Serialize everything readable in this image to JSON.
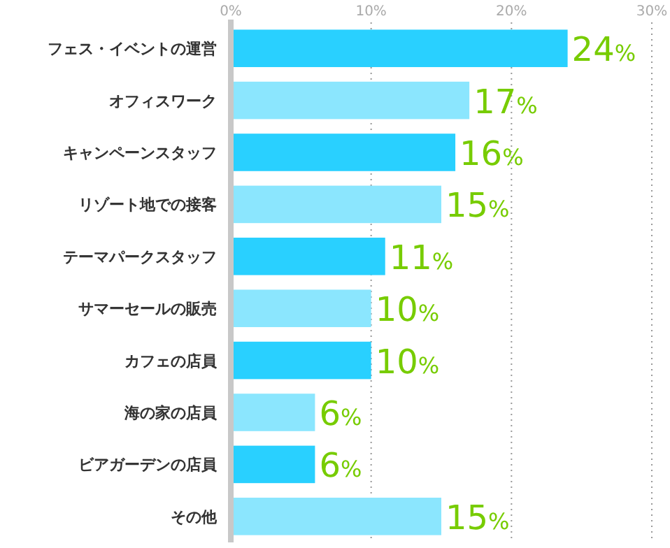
{
  "chart_data": {
    "type": "bar",
    "orientation": "horizontal",
    "categories": [
      "フェス・イベントの運営",
      "オフィスワーク",
      "キャンペーンスタッフ",
      "リゾート地での接客",
      "テーマパークスタッフ",
      "サマーセールの販売",
      "カフェの店員",
      "海の家の店員",
      "ビアガーデンの店員",
      "その他"
    ],
    "values": [
      24,
      17,
      16,
      15,
      11,
      10,
      10,
      6,
      6,
      15
    ],
    "colors": [
      "#29d0ff",
      "#8be6fe",
      "#29d0ff",
      "#8be6fe",
      "#29d0ff",
      "#8be6fe",
      "#29d0ff",
      "#8be6fe",
      "#29d0ff",
      "#8be6fe"
    ],
    "value_labels": [
      "24%",
      "17%",
      "16%",
      "15%",
      "11%",
      "10%",
      "10%",
      "6%",
      "6%",
      "15%"
    ],
    "xlim": [
      0,
      30
    ],
    "xticks": [
      {
        "value": 0,
        "label": "0%"
      },
      {
        "value": 10,
        "label": "10%"
      },
      {
        "value": 20,
        "label": "20%"
      },
      {
        "value": 30,
        "label": "30%"
      }
    ],
    "grid": "x"
  }
}
